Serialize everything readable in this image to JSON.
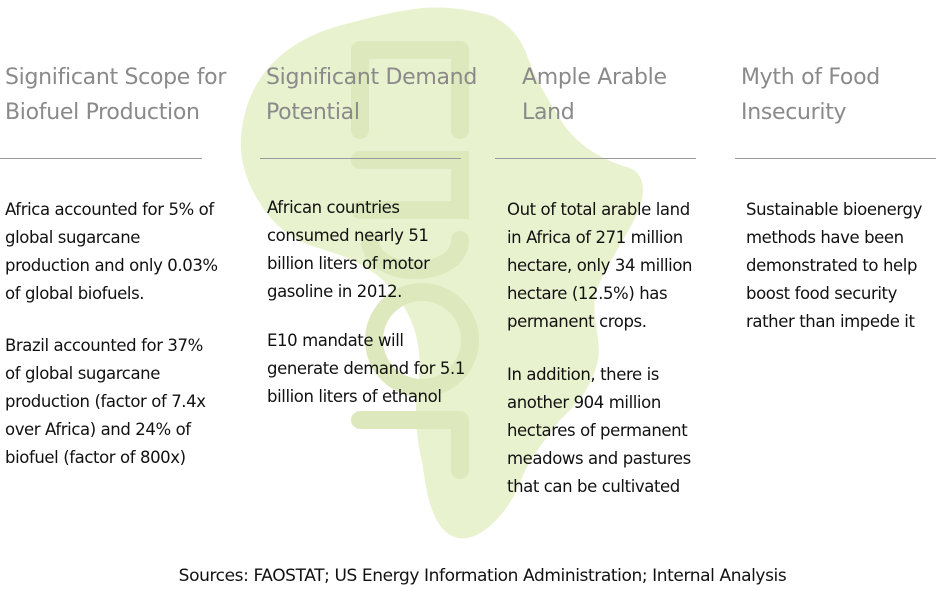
{
  "background": {
    "map_icon": "africa-map-icon",
    "map_color": "#e9f2cf",
    "watermark_icon": "watermark-icon",
    "watermark_color": "#dde9bd"
  },
  "columns": [
    {
      "title_lines": [
        "Significant Scope for",
        "Biofuel Production"
      ],
      "paragraphs": [
        [
          "Africa accounted for 5% of",
          "global sugarcane",
          "production and only 0.03%",
          "of global biofuels."
        ],
        [
          "Brazil accounted for 37%",
          "of global sugarcane",
          "production (factor of 7.4x",
          "over Africa) and 24% of",
          "biofuel (factor of 800x)"
        ]
      ]
    },
    {
      "title_lines": [
        "Significant Demand",
        "Potential"
      ],
      "paragraphs": [
        [
          "African countries",
          "consumed nearly 51",
          "billion liters of motor",
          "gasoline in 2012."
        ],
        [
          "E10 mandate will",
          "generate demand for 5.1",
          "billion liters of ethanol"
        ]
      ]
    },
    {
      "title_lines": [
        "Ample Arable",
        "Land"
      ],
      "paragraphs": [
        [
          "Out of total arable land",
          "in Africa of 271 million",
          "hectare, only 34 million",
          "hectare (12.5%) has",
          "permanent crops."
        ],
        [
          "In addition, there is",
          "another 904 million",
          "hectares of permanent",
          "meadows and pastures",
          "that can be cultivated"
        ]
      ]
    },
    {
      "title_lines": [
        "Myth of Food",
        "Insecurity"
      ],
      "paragraphs": [
        [
          "Sustainable bioenergy",
          "methods have been",
          "demonstrated to help",
          "boost food security",
          "rather than impede it"
        ]
      ]
    }
  ],
  "sources": "Sources: FAOSTAT; US Energy Information Administration; Internal Analysis"
}
